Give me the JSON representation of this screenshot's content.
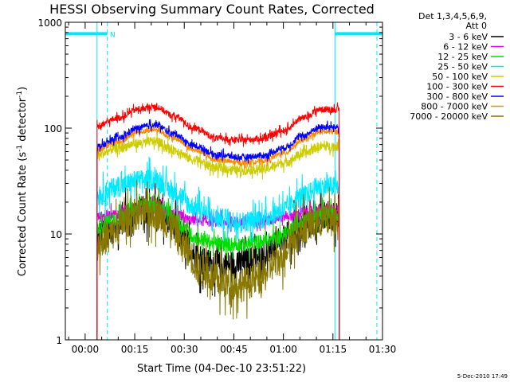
{
  "chart_data": {
    "type": "line",
    "title": "HESSI Observing Summary Count Rates, Corrected",
    "xlabel": "Start Time (04-Dec-10 23:51:22)",
    "ylabel_main": "Corrected Count Rate (s",
    "ylabel_sup1": "-1",
    "ylabel_mid": " detector",
    "ylabel_sup2": "-1",
    "ylabel_end": ")",
    "yscale": "log",
    "ylim": [
      1,
      1000
    ],
    "x_units": "minutes after start time",
    "xlim": [
      -6,
      90
    ],
    "x_ticks": [
      {
        "value": 0,
        "label": "00:00"
      },
      {
        "value": 15,
        "label": "00:15"
      },
      {
        "value": 30,
        "label": "00:30"
      },
      {
        "value": 45,
        "label": "00:45"
      },
      {
        "value": 60,
        "label": "01:00"
      },
      {
        "value": 75,
        "label": "01:15"
      },
      {
        "value": 90,
        "label": "01:30"
      }
    ],
    "y_ticks": [
      {
        "value": 1,
        "label": "1"
      },
      {
        "value": 10,
        "label": "10"
      },
      {
        "value": 100,
        "label": "100"
      },
      {
        "value": 1000,
        "label": "1000"
      }
    ],
    "legend_header": [
      "Det 1,3,4,5,6,9,",
      "Att 0"
    ],
    "legend_position": "right",
    "data_start": 3.6,
    "data_end": 76.9,
    "series": [
      {
        "name": "3 - 6 keV",
        "color": "#000000",
        "noise": 0.14,
        "points": [
          [
            3.6,
            9.5
          ],
          [
            8,
            11
          ],
          [
            12,
            14
          ],
          [
            16,
            16.5
          ],
          [
            21,
            17
          ],
          [
            26,
            13
          ],
          [
            30,
            8.5
          ],
          [
            35,
            5.5
          ],
          [
            41,
            5
          ],
          [
            47,
            5.2
          ],
          [
            53,
            6
          ],
          [
            58,
            7.5
          ],
          [
            63,
            10.5
          ],
          [
            68,
            13
          ],
          [
            72,
            14.5
          ],
          [
            76.9,
            15
          ]
        ]
      },
      {
        "name": "6 - 12 keV",
        "color": "#e000e0",
        "noise": 0.05,
        "points": [
          [
            3.6,
            14.5
          ],
          [
            10,
            15.5
          ],
          [
            16,
            17.5
          ],
          [
            21,
            18
          ],
          [
            27,
            15.5
          ],
          [
            32,
            13.5
          ],
          [
            40,
            13
          ],
          [
            48,
            13
          ],
          [
            55,
            13.5
          ],
          [
            62,
            15
          ],
          [
            68,
            16.5
          ],
          [
            72,
            17
          ],
          [
            76.9,
            17
          ]
        ]
      },
      {
        "name": "12 - 25 keV",
        "color": "#00dd00",
        "noise": 0.07,
        "points": [
          [
            3.6,
            11.5
          ],
          [
            9,
            14
          ],
          [
            14,
            17
          ],
          [
            19,
            18.5
          ],
          [
            24,
            16.5
          ],
          [
            29,
            12
          ],
          [
            34,
            9
          ],
          [
            41,
            8
          ],
          [
            48,
            8
          ],
          [
            54,
            8.5
          ],
          [
            59,
            9.5
          ],
          [
            64,
            12
          ],
          [
            69,
            14.5
          ],
          [
            72,
            15.5
          ],
          [
            76.9,
            15.5
          ]
        ]
      },
      {
        "name": "25 - 50 keV",
        "color": "#00e8ff",
        "noise": 0.1,
        "points": [
          [
            3.6,
            23
          ],
          [
            10,
            28
          ],
          [
            16,
            32
          ],
          [
            21,
            33
          ],
          [
            27,
            25
          ],
          [
            33,
            18
          ],
          [
            40,
            14
          ],
          [
            47,
            13
          ],
          [
            54,
            14
          ],
          [
            60,
            17
          ],
          [
            66,
            23
          ],
          [
            71,
            28
          ],
          [
            76.9,
            28
          ]
        ]
      },
      {
        "name": "50 - 100 keV",
        "color": "#cccc00",
        "noise": 0.045,
        "points": [
          [
            3.6,
            56
          ],
          [
            10,
            65
          ],
          [
            16,
            72
          ],
          [
            21,
            75
          ],
          [
            27,
            62
          ],
          [
            33,
            50
          ],
          [
            40,
            42
          ],
          [
            47,
            40
          ],
          [
            54,
            41
          ],
          [
            60,
            47
          ],
          [
            66,
            57
          ],
          [
            71,
            67
          ],
          [
            76.9,
            67
          ]
        ]
      },
      {
        "name": "100 - 300 keV",
        "color": "#ff0000",
        "noise": 0.03,
        "points": [
          [
            3.6,
            104
          ],
          [
            10,
            125
          ],
          [
            16,
            150
          ],
          [
            21,
            160
          ],
          [
            27,
            130
          ],
          [
            33,
            100
          ],
          [
            40,
            80
          ],
          [
            47,
            77
          ],
          [
            54,
            80
          ],
          [
            60,
            95
          ],
          [
            66,
            125
          ],
          [
            71,
            150
          ],
          [
            76.9,
            150
          ]
        ]
      },
      {
        "name": "300 - 800 keV",
        "color": "#0000ff",
        "noise": 0.03,
        "points": [
          [
            3.6,
            67
          ],
          [
            10,
            80
          ],
          [
            16,
            100
          ],
          [
            21,
            108
          ],
          [
            27,
            88
          ],
          [
            33,
            68
          ],
          [
            40,
            56
          ],
          [
            47,
            53
          ],
          [
            54,
            55
          ],
          [
            60,
            65
          ],
          [
            66,
            85
          ],
          [
            71,
            102
          ],
          [
            76.9,
            102
          ]
        ]
      },
      {
        "name": "800 - 7000 keV",
        "color": "#ff8800",
        "noise": 0.025,
        "points": [
          [
            3.6,
            62
          ],
          [
            10,
            75
          ],
          [
            16,
            92
          ],
          [
            21,
            97
          ],
          [
            27,
            80
          ],
          [
            33,
            62
          ],
          [
            40,
            50
          ],
          [
            47,
            47
          ],
          [
            54,
            49
          ],
          [
            60,
            58
          ],
          [
            66,
            77
          ],
          [
            71,
            92
          ],
          [
            76.9,
            92
          ]
        ]
      },
      {
        "name": "7000 - 20000 keV",
        "color": "#887700",
        "noise": 0.16,
        "points": [
          [
            3.6,
            8
          ],
          [
            8,
            10
          ],
          [
            12,
            13
          ],
          [
            16,
            15.5
          ],
          [
            21,
            16
          ],
          [
            26,
            12
          ],
          [
            30,
            7.5
          ],
          [
            35,
            4.5
          ],
          [
            41,
            3.5
          ],
          [
            47,
            3.3
          ],
          [
            53,
            3.8
          ],
          [
            58,
            5.5
          ],
          [
            63,
            9
          ],
          [
            68,
            12
          ],
          [
            72,
            13.5
          ],
          [
            76.9,
            14
          ]
        ]
      }
    ],
    "annotations": {
      "bar_color": "#00e8ff",
      "bars": [
        [
          -6,
          6.7
        ],
        [
          75.6,
          90
        ]
      ],
      "bar_y": 780,
      "dashed_lines": [
        6.7,
        88.3
      ],
      "solid_lines": [
        3.6,
        75.6
      ],
      "marker_label": "N",
      "marker_x": 7.5
    }
  },
  "footer": {
    "stamp": "5-Dec-2010 17:49"
  }
}
